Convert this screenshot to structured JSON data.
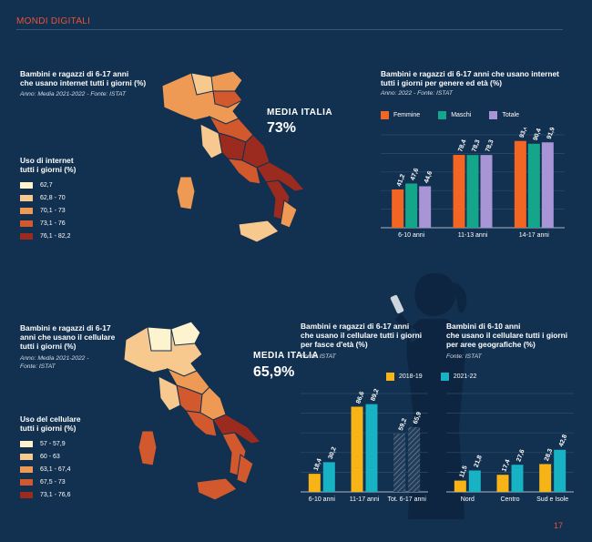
{
  "header": {
    "section": "MONDI DIGITALI",
    "page_number": "17"
  },
  "panel_internet_map": {
    "title_lines": [
      "Bambini e ragazzi di 6-17 anni",
      "che usano internet tutti i giorni (%)"
    ],
    "source": "Anno: Media 2021-2022 - Fonte: ISTAT",
    "media_label": "MEDIA ITALIA",
    "media_value": "73%",
    "legend_title_lines": [
      "Uso di internet",
      "tutti i giorni (%)"
    ],
    "legend": [
      {
        "label": "62,7",
        "color": "#fdf3cf"
      },
      {
        "label": "62,8 - 70",
        "color": "#f7c98f"
      },
      {
        "label": "70,1 - 73",
        "color": "#ee9a55"
      },
      {
        "label": "73,1 - 76",
        "color": "#d2582d"
      },
      {
        "label": "76,1 - 82,2",
        "color": "#9b2a1f"
      }
    ]
  },
  "panel_cell_map": {
    "title_lines": [
      "Bambini e ragazzi di 6-17",
      "anni che usano il cellulare",
      "tutti i giorni (%)"
    ],
    "source_lines": [
      "Anno: Media 2021-2022 -",
      "Fonte: ISTAT"
    ],
    "media_label": "MEDIA ITALIA",
    "media_value": "65,9%",
    "legend_title_lines": [
      "Uso del cellulare",
      "tutti i giorni (%)"
    ],
    "legend": [
      {
        "label": "57 - 57,9",
        "color": "#fdf3cf"
      },
      {
        "label": "60 - 63",
        "color": "#f7c98f"
      },
      {
        "label": "63,1 - 67,4",
        "color": "#ee9a55"
      },
      {
        "label": "67,5 - 73",
        "color": "#d2582d"
      },
      {
        "label": "73,1 - 76,6",
        "color": "#9b2a1f"
      }
    ]
  },
  "chart_texts": {
    "gender_title_lines": [
      "Bambini e ragazzi di 6-17 anni che usano internet",
      "tutti i giorni per genere ed età (%)"
    ],
    "gender_source": "Anno: 2022 - Fonte: ISTAT",
    "age_title_lines": [
      "Bambini e ragazzi di 6-17 anni",
      "che usano il cellulare tutti i giorni",
      "per fasce d'età (%)"
    ],
    "age_source": "Fonte: ISTAT",
    "area_title_lines": [
      "Bambini di 6-10 anni",
      "che usano il cellulare tutti i giorni",
      "per aree geografiche (%)"
    ],
    "area_source": "Fonte: ISTAT"
  },
  "chart_data": [
    {
      "type": "bar",
      "categories": [
        "6-10 anni",
        "11-13 anni",
        "14-17 anni"
      ],
      "series": [
        {
          "name": "Femmine",
          "color": "#f26522",
          "values": [
            41.2,
            78.4,
            93.4
          ]
        },
        {
          "name": "Maschi",
          "color": "#13a68a",
          "values": [
            47.6,
            78.3,
            90.4
          ]
        },
        {
          "name": "Totale",
          "color": "#a895d6",
          "values": [
            44.6,
            78.3,
            91.9
          ]
        }
      ],
      "value_labels": [
        [
          "41,2",
          "78,4",
          "93,4"
        ],
        [
          "47,6",
          "78,3",
          "90,4"
        ],
        [
          "44,6",
          "78,3",
          "91,9"
        ]
      ],
      "ylim": [
        0,
        100
      ],
      "grid": true,
      "legend_position": "top"
    },
    {
      "type": "bar",
      "categories": [
        "6-10 anni",
        "11-17 anni",
        "Tot. 6-17 anni"
      ],
      "series": [
        {
          "name": "2018-19",
          "color": "#f6b417",
          "values": [
            18.4,
            86.6,
            59.2
          ]
        },
        {
          "name": "2021-22",
          "color": "#17b2c4",
          "values": [
            30.2,
            89.2,
            65.9
          ]
        }
      ],
      "value_labels": [
        [
          "18,4",
          "86,6",
          "59,2"
        ],
        [
          "30,2",
          "89,2",
          "65,9"
        ]
      ],
      "ylim": [
        0,
        100
      ],
      "grid": true,
      "legend_position": "top"
    },
    {
      "type": "bar",
      "categories": [
        "Nord",
        "Centro",
        "Sud e Isole"
      ],
      "series": [
        {
          "name": "2018-19",
          "color": "#f6b417",
          "values": [
            11.5,
            17.4,
            28.3
          ]
        },
        {
          "name": "2021-22",
          "color": "#17b2c4",
          "values": [
            21.8,
            27.6,
            42.8
          ]
        }
      ],
      "value_labels": [
        [
          "11,5",
          "17,4",
          "28,3"
        ],
        [
          "21,8",
          "27,6",
          "42,8"
        ]
      ],
      "ylim": [
        0,
        100
      ],
      "grid": true,
      "legend_position": "top"
    }
  ]
}
